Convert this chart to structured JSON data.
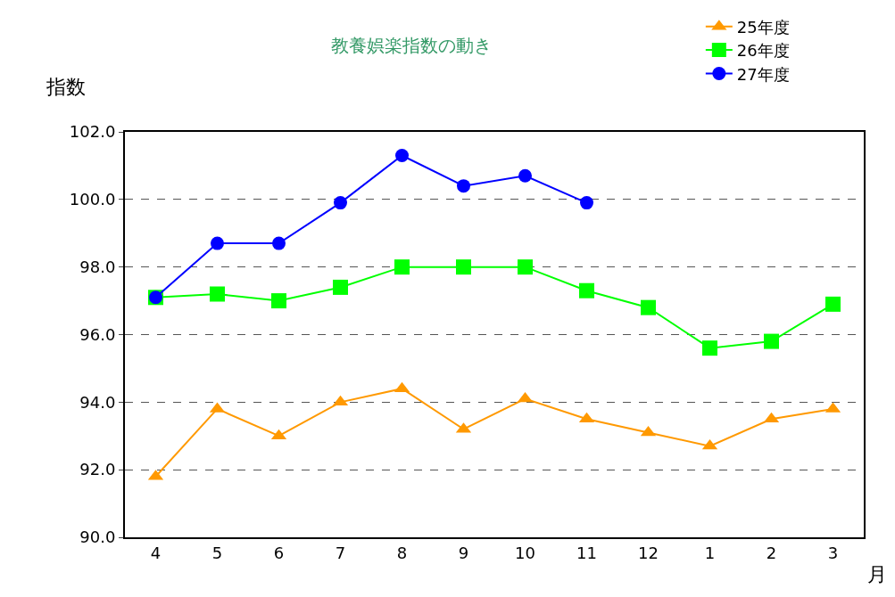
{
  "chart_data": {
    "type": "line",
    "title": "教養娯楽指数の動き",
    "ylabel": "指数",
    "xlabel": "月",
    "categories": [
      "4",
      "5",
      "6",
      "7",
      "8",
      "9",
      "10",
      "11",
      "12",
      "1",
      "2",
      "3"
    ],
    "series": [
      {
        "name": "25年度",
        "color": "#ff9900",
        "marker": "triangle",
        "values": [
          91.8,
          93.8,
          93.0,
          94.0,
          94.4,
          93.2,
          94.1,
          93.5,
          93.1,
          92.7,
          93.5,
          93.8
        ]
      },
      {
        "name": "26年度",
        "color": "#00ff00",
        "marker": "square",
        "values": [
          97.1,
          97.2,
          97.0,
          97.4,
          98.0,
          98.0,
          98.0,
          97.3,
          96.8,
          95.6,
          95.8,
          96.9
        ]
      },
      {
        "name": "27年度",
        "color": "#0000ff",
        "marker": "circle",
        "values": [
          97.1,
          98.7,
          98.7,
          99.9,
          101.3,
          100.4,
          100.7,
          99.9,
          null,
          null,
          null,
          null
        ]
      }
    ],
    "ylim": [
      90,
      102
    ],
    "yticks": [
      {
        "value": 90,
        "label": "90.0"
      },
      {
        "value": 92,
        "label": "92.0"
      },
      {
        "value": 94,
        "label": "94.0"
      },
      {
        "value": 96,
        "label": "96.0"
      },
      {
        "value": 98,
        "label": "98.0"
      },
      {
        "value": 100,
        "label": "100.0"
      },
      {
        "value": 102,
        "label": "102.0"
      }
    ],
    "grid": "y",
    "legend": "top right",
    "line_style": "solid"
  }
}
